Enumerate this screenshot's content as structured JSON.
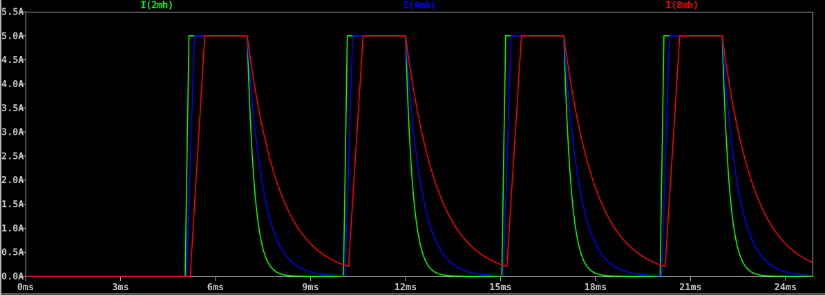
{
  "window": {
    "background": "#000000",
    "frame_color": "#b8b8b8",
    "text_color": "#c9c9c9"
  },
  "chart_data": {
    "type": "line",
    "title": "",
    "x_unit": "ms",
    "y_unit": "A",
    "xlim": [
      0,
      24.875
    ],
    "ylim": [
      0,
      5.5
    ],
    "grid": false,
    "legend_position": "top",
    "x_ticks": {
      "values": [
        0,
        3,
        6,
        9,
        12,
        15,
        18,
        21,
        24
      ],
      "labels": [
        "0ms",
        "3ms",
        "6ms",
        "9ms",
        "12ms",
        "15ms",
        "18ms",
        "21ms",
        "24ms"
      ]
    },
    "y_ticks": {
      "values": [
        0,
        0.5,
        1.0,
        1.5,
        2.0,
        2.5,
        3.0,
        3.5,
        4.0,
        4.5,
        5.0,
        5.5
      ],
      "labels": [
        "0.0A",
        "0.5A",
        "1.0A",
        "1.5A",
        "2.0A",
        "2.5A",
        "3.0A",
        "3.5A",
        "4.0A",
        "4.5A",
        "5.0A",
        "5.5A"
      ]
    },
    "series": [
      {
        "name": "I(2mh)",
        "color": "#00ff00",
        "inductance_mH": 2,
        "model": {
          "amplitude_A": 5.0,
          "first_pulse_ms": 5.0,
          "period_ms": 5.0,
          "on_time_ms": 2.0,
          "rise_begin_offset_ms": 0.04,
          "rise_end_offset_ms": 0.16,
          "decay_tau_ms": 0.23
        }
      },
      {
        "name": "I(4mh)",
        "color": "#0000ff",
        "inductance_mH": 4,
        "model": {
          "amplitude_A": 5.0,
          "first_pulse_ms": 5.0,
          "period_ms": 5.0,
          "on_time_ms": 2.0,
          "rise_begin_offset_ms": 0.09,
          "rise_end_offset_ms": 0.33,
          "decay_tau_ms": 0.5
        }
      },
      {
        "name": "I(8mh)",
        "color": "#ff0000",
        "inductance_mH": 8,
        "model": {
          "amplitude_A": 5.0,
          "first_pulse_ms": 5.0,
          "period_ms": 5.0,
          "on_time_ms": 2.0,
          "rise_begin_offset_ms": 0.2,
          "rise_end_offset_ms": 0.66,
          "decay_tau_ms": 1.0
        }
      }
    ]
  }
}
